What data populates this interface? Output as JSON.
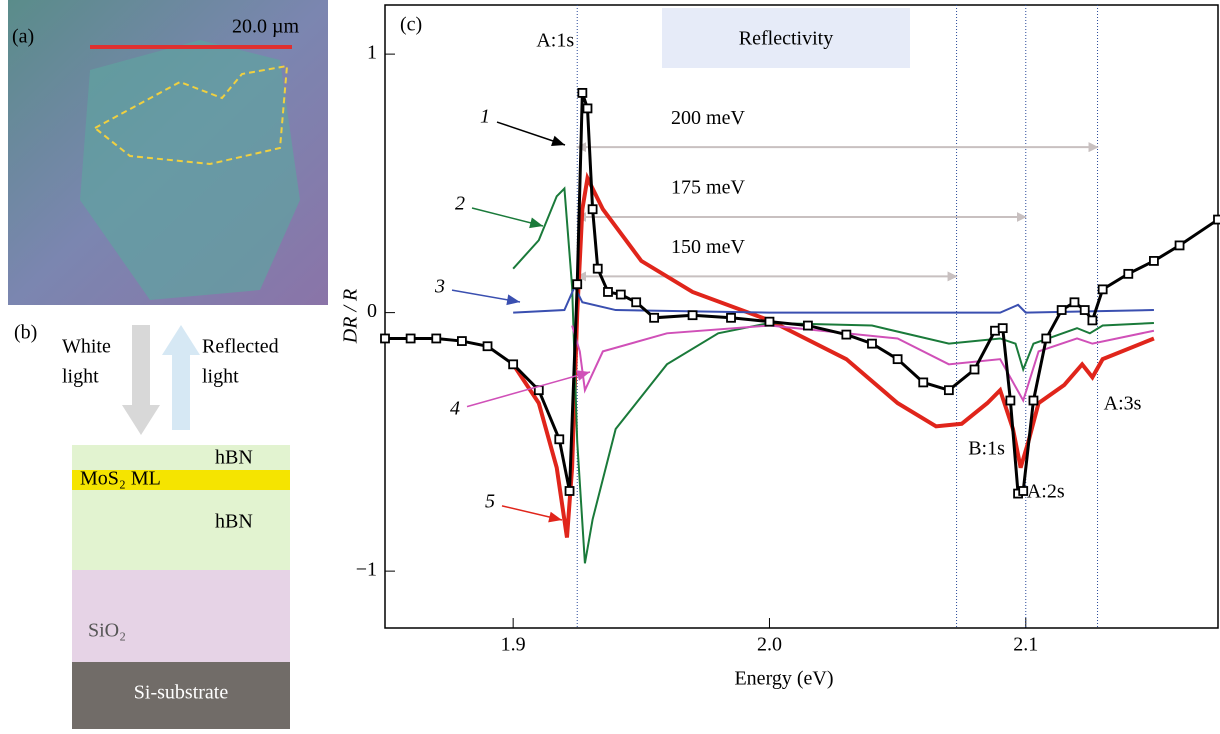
{
  "panels": {
    "a": {
      "label": "(a)",
      "scale_bar": "20.0 µm"
    },
    "b": {
      "label": "(b)",
      "white_light": [
        "White",
        "light"
      ],
      "reflected_light": [
        "Reflected",
        "light"
      ],
      "layers": [
        "hBN",
        "MoS₂ ML",
        "hBN",
        "SiO₂",
        "Si-substrate"
      ]
    }
  },
  "chart_data": {
    "type": "line",
    "panel_label": "(c)",
    "legend_box": "Reflectivity",
    "xlabel": "Energy (eV)",
    "ylabel": "DR / R",
    "xlim": [
      1.85,
      2.175
    ],
    "ylim": [
      -1.22,
      1.19
    ],
    "xticks": [
      1.9,
      {
        "value": 2.0,
        "label": "2.0"
      },
      2.1
    ],
    "yticks": [
      {
        "value": -1,
        "label": "−1"
      },
      0,
      1
    ],
    "vlines": [
      {
        "x": 1.925,
        "label": "A:1s"
      },
      {
        "x": 2.073,
        "label": "B:1s"
      },
      {
        "x": 2.1,
        "label": "A:2s"
      },
      {
        "x": 2.128,
        "label": "A:3s"
      }
    ],
    "spacings": [
      {
        "label": "200 meV",
        "x": [
          1.925,
          2.128
        ],
        "y": 0.64
      },
      {
        "label": "175 meV",
        "x": [
          1.925,
          2.1
        ],
        "y": 0.37
      },
      {
        "label": "150 meV",
        "x": [
          1.925,
          2.073
        ],
        "y": 0.14
      }
    ],
    "series": [
      {
        "name": "1",
        "color": "#000000",
        "markers": true,
        "x": [
          1.85,
          1.86,
          1.87,
          1.88,
          1.89,
          1.9,
          1.91,
          1.918,
          1.922,
          1.925,
          1.927,
          1.929,
          1.931,
          1.933,
          1.937,
          1.942,
          1.948,
          1.955,
          1.97,
          1.985,
          2.0,
          2.015,
          2.03,
          2.04,
          2.05,
          2.06,
          2.07,
          2.08,
          2.088,
          2.091,
          2.094,
          2.097,
          2.099,
          2.103,
          2.108,
          2.114,
          2.119,
          2.123,
          2.126,
          2.13,
          2.14,
          2.15,
          2.16,
          2.175
        ],
        "values": [
          -0.1,
          -0.1,
          -0.1,
          -0.11,
          -0.13,
          -0.2,
          -0.3,
          -0.49,
          -0.69,
          0.11,
          0.85,
          0.79,
          0.4,
          0.17,
          0.08,
          0.07,
          0.04,
          -0.02,
          -0.01,
          -0.02,
          -0.035,
          -0.05,
          -0.085,
          -0.12,
          -0.18,
          -0.27,
          -0.3,
          -0.22,
          -0.07,
          -0.06,
          -0.34,
          -0.7,
          -0.69,
          -0.34,
          -0.1,
          0.01,
          0.04,
          0.01,
          -0.03,
          0.09,
          0.15,
          0.2,
          0.26,
          0.36
        ]
      },
      {
        "name": "2",
        "color": "#1a7a3a",
        "x": [
          1.9,
          1.91,
          1.917,
          1.92,
          1.923,
          1.925,
          1.928,
          1.931,
          1.94,
          1.96,
          1.98,
          2.0,
          2.04,
          2.07,
          2.09,
          2.096,
          2.099,
          2.103,
          2.12,
          2.125,
          2.13,
          2.15
        ],
        "values": [
          0.17,
          0.28,
          0.45,
          0.48,
          0.1,
          -0.5,
          -0.97,
          -0.8,
          -0.45,
          -0.2,
          -0.08,
          -0.04,
          -0.05,
          -0.12,
          -0.1,
          -0.12,
          -0.22,
          -0.12,
          -0.06,
          -0.08,
          -0.05,
          -0.04
        ]
      },
      {
        "name": "3",
        "color": "#3a4fb0",
        "x": [
          1.9,
          1.92,
          1.924,
          1.927,
          1.94,
          2.0,
          2.09,
          2.097,
          2.1,
          2.15
        ],
        "values": [
          0.0,
          0.01,
          0.1,
          0.04,
          0.01,
          0.0,
          0.0,
          0.03,
          0.0,
          0.01
        ]
      },
      {
        "name": "4",
        "color": "#d050b8",
        "x": [
          1.923,
          1.926,
          1.928,
          1.935,
          1.96,
          2.0,
          2.05,
          2.07,
          2.09,
          2.099,
          2.105,
          2.12,
          2.126,
          2.15
        ],
        "values": [
          -0.05,
          -0.15,
          -0.3,
          -0.15,
          -0.08,
          -0.05,
          -0.1,
          -0.2,
          -0.18,
          -0.34,
          -0.15,
          -0.1,
          -0.12,
          -0.07
        ]
      },
      {
        "name": "5",
        "color": "#e0251b",
        "width": 4,
        "x": [
          1.9,
          1.91,
          1.917,
          1.921,
          1.923,
          1.925,
          1.927,
          1.929,
          1.935,
          1.95,
          1.97,
          2.0,
          2.03,
          2.05,
          2.065,
          2.075,
          2.085,
          2.09,
          2.095,
          2.098,
          2.101,
          2.105,
          2.115,
          2.122,
          2.126,
          2.13,
          2.15
        ],
        "values": [
          -0.2,
          -0.35,
          -0.6,
          -0.87,
          -0.6,
          0.0,
          0.4,
          0.52,
          0.4,
          0.2,
          0.08,
          -0.03,
          -0.18,
          -0.35,
          -0.44,
          -0.43,
          -0.35,
          -0.3,
          -0.45,
          -0.6,
          -0.5,
          -0.35,
          -0.28,
          -0.2,
          -0.25,
          -0.18,
          -0.1
        ]
      }
    ]
  }
}
